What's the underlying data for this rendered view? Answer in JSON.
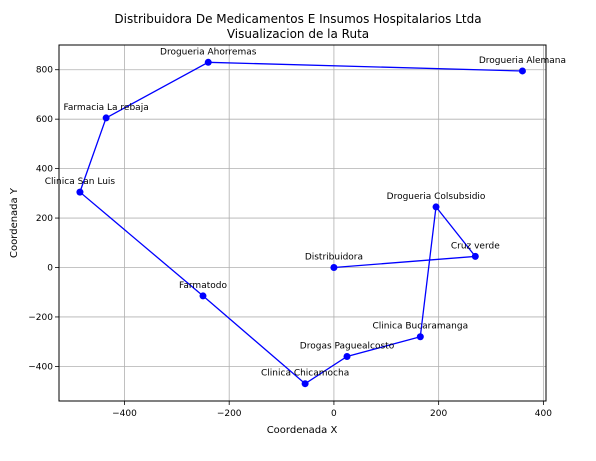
{
  "chart_data": {
    "type": "line",
    "title": "Distribuidora De Medicamentos E Insumos Hospitalarios Ltda",
    "subtitle": "Visualizacion de la Ruta",
    "xlabel": "Coordenada X",
    "ylabel": "Coordenada Y",
    "xlim": [
      -525,
      405
    ],
    "ylim": [
      -540,
      900
    ],
    "x_ticks": [
      -400,
      -200,
      0,
      200,
      400
    ],
    "y_ticks": [
      -400,
      -200,
      0,
      200,
      400,
      600,
      800
    ],
    "grid": true,
    "color": "#0000ff",
    "points": [
      {
        "label": "Distribuidora",
        "x": 0,
        "y": 0
      },
      {
        "label": "Cruz verde",
        "x": 270,
        "y": 45
      },
      {
        "label": "Drogueria Colsubsidio",
        "x": 195,
        "y": 245
      },
      {
        "label": "Clinica Bucaramanga",
        "x": 165,
        "y": -280
      },
      {
        "label": "Drogas Paguealcosto",
        "x": 25,
        "y": -360
      },
      {
        "label": "Clinica Chicamocha",
        "x": -55,
        "y": -470
      },
      {
        "label": "Farmatodo",
        "x": -250,
        "y": -115
      },
      {
        "label": "Clinica San Luis",
        "x": -485,
        "y": 305
      },
      {
        "label": "Farmacia La rebaja",
        "x": -435,
        "y": 605
      },
      {
        "label": "Drogueria Ahorremas",
        "x": -240,
        "y": 830
      },
      {
        "label": "Drogueria Alemana",
        "x": 360,
        "y": 795
      }
    ]
  }
}
